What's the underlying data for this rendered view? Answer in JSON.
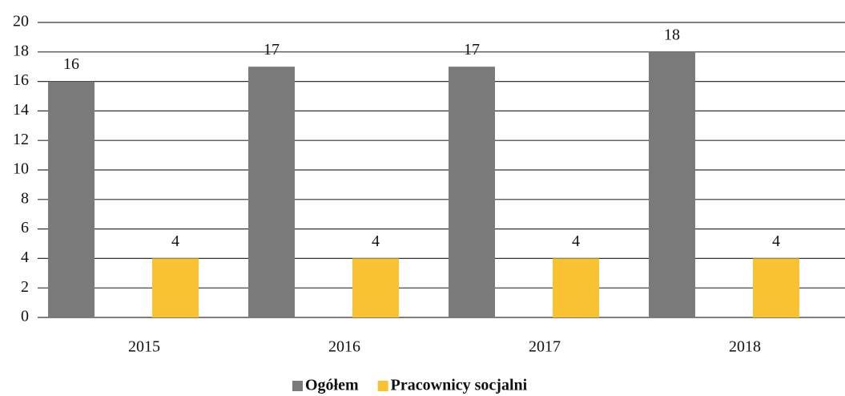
{
  "chart_data": {
    "type": "bar",
    "categories": [
      "2015",
      "2016",
      "2017",
      "2018"
    ],
    "series": [
      {
        "name": "Ogółem",
        "color": "#7a7a7a",
        "values": [
          16,
          17,
          17,
          18
        ]
      },
      {
        "name": "Pracownicy socjalni",
        "color": "#f9c232",
        "values": [
          4,
          4,
          4,
          4
        ]
      }
    ],
    "ylim": [
      0,
      20
    ],
    "yticks": [
      0,
      2,
      4,
      6,
      8,
      10,
      12,
      14,
      16,
      18,
      20
    ],
    "grid": true,
    "legend": "bottom"
  }
}
